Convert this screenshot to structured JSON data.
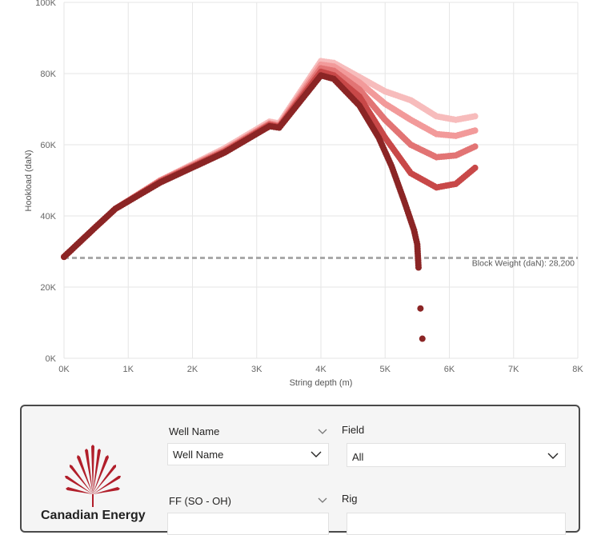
{
  "chart_data": {
    "type": "scatter",
    "title": "",
    "xlabel": "String depth (m)",
    "ylabel": "Hookload (daN)",
    "xlim": [
      0,
      8000
    ],
    "ylim": [
      0,
      100000
    ],
    "x_ticks": [
      "0K",
      "1K",
      "2K",
      "3K",
      "4K",
      "5K",
      "6K",
      "7K",
      "8K"
    ],
    "y_ticks": [
      "0K",
      "20K",
      "40K",
      "60K",
      "80K",
      "100K"
    ],
    "grid": true,
    "reference_line": {
      "label": "Block Weight (daN): 28,200",
      "y": 28200,
      "color": "#a0a0a0"
    },
    "series": [
      {
        "color": "#f7bcbc",
        "points": [
          [
            0,
            28500
          ],
          [
            500,
            37000
          ],
          [
            800,
            42000
          ],
          [
            1500,
            50000
          ],
          [
            2500,
            59000
          ],
          [
            3200,
            66500
          ],
          [
            3350,
            66000
          ],
          [
            4000,
            83500
          ],
          [
            4200,
            83000
          ],
          [
            4600,
            79000
          ],
          [
            5000,
            75000
          ],
          [
            5400,
            72500
          ],
          [
            5800,
            68000
          ],
          [
            6100,
            67000
          ],
          [
            6400,
            68000
          ]
        ]
      },
      {
        "color": "#f29a9a",
        "points": [
          [
            0,
            28500
          ],
          [
            500,
            37000
          ],
          [
            800,
            42000
          ],
          [
            1500,
            50000
          ],
          [
            2500,
            58500
          ],
          [
            3200,
            66000
          ],
          [
            3350,
            65500
          ],
          [
            4000,
            82500
          ],
          [
            4200,
            82000
          ],
          [
            4600,
            77500
          ],
          [
            5000,
            71500
          ],
          [
            5400,
            67000
          ],
          [
            5800,
            63000
          ],
          [
            6100,
            62500
          ],
          [
            6400,
            64000
          ]
        ]
      },
      {
        "color": "#e27474",
        "points": [
          [
            0,
            28500
          ],
          [
            500,
            37000
          ],
          [
            800,
            42000
          ],
          [
            1500,
            49800
          ],
          [
            2500,
            58300
          ],
          [
            3200,
            65800
          ],
          [
            3350,
            65200
          ],
          [
            4000,
            81500
          ],
          [
            4200,
            80800
          ],
          [
            4600,
            75500
          ],
          [
            5000,
            67000
          ],
          [
            5400,
            60000
          ],
          [
            5800,
            56500
          ],
          [
            6100,
            57000
          ],
          [
            6400,
            59500
          ]
        ]
      },
      {
        "color": "#c84848",
        "points": [
          [
            0,
            28500
          ],
          [
            500,
            37000
          ],
          [
            800,
            42000
          ],
          [
            1500,
            49600
          ],
          [
            2500,
            58000
          ],
          [
            3200,
            65500
          ],
          [
            3350,
            65000
          ],
          [
            4000,
            80500
          ],
          [
            4200,
            79500
          ],
          [
            4600,
            73500
          ],
          [
            5000,
            62000
          ],
          [
            5400,
            52000
          ],
          [
            5800,
            48000
          ],
          [
            6100,
            49000
          ],
          [
            6400,
            53500
          ]
        ]
      },
      {
        "color": "#8b2525",
        "points": [
          [
            0,
            28500
          ],
          [
            500,
            37000
          ],
          [
            800,
            42000
          ],
          [
            1500,
            49400
          ],
          [
            2500,
            57800
          ],
          [
            3200,
            65200
          ],
          [
            3350,
            64800
          ],
          [
            4000,
            79500
          ],
          [
            4200,
            78500
          ],
          [
            4600,
            71000
          ],
          [
            4900,
            62000
          ],
          [
            5100,
            54000
          ],
          [
            5300,
            44000
          ],
          [
            5450,
            36000
          ],
          [
            5500,
            32000
          ],
          [
            5520,
            25500
          ],
          [
            5550,
            14000
          ],
          [
            5580,
            5500
          ]
        ]
      }
    ]
  },
  "filters": {
    "company_name": "Canadian Energy",
    "well_name": {
      "title": "Well Name",
      "selected": "Well Name"
    },
    "field": {
      "title": "Field",
      "selected": "All"
    },
    "ff": {
      "title": "FF (SO - OH)",
      "selected": ""
    },
    "rig": {
      "title": "Rig",
      "selected": ""
    }
  }
}
